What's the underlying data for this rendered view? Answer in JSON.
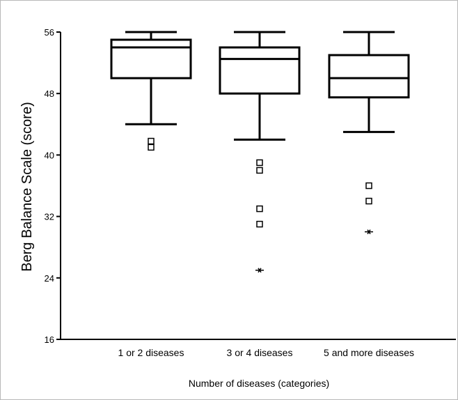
{
  "chart_data": {
    "type": "box",
    "title": "",
    "xlabel": "Number of diseases (categories)",
    "ylabel": "Berg Balance Scale (score)",
    "ylim": [
      16,
      56
    ],
    "yticks": [
      16,
      24,
      32,
      40,
      48,
      56
    ],
    "grid": false,
    "categories": [
      "1 or 2 diseases",
      "3 or 4 diseases",
      "5 and more diseases"
    ],
    "boxes": [
      {
        "whisker_low": 44,
        "q1": 50,
        "median": 54,
        "q3": 55,
        "whisker_high": 56,
        "outliers": [
          41,
          41.8
        ],
        "extremes": []
      },
      {
        "whisker_low": 42,
        "q1": 48,
        "median": 52.5,
        "q3": 54,
        "whisker_high": 56,
        "outliers": [
          31,
          33,
          38,
          39
        ],
        "extremes": [
          25
        ]
      },
      {
        "whisker_low": 43,
        "q1": 47.5,
        "median": 50,
        "q3": 53,
        "whisker_high": 56,
        "outliers": [
          34,
          36
        ],
        "extremes": [
          30
        ]
      }
    ]
  }
}
